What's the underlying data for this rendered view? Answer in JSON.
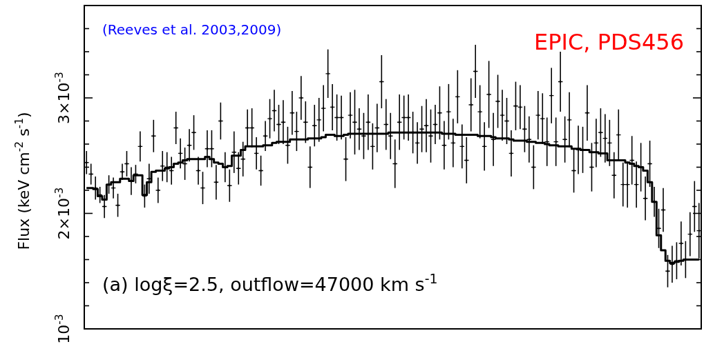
{
  "chart_data": {
    "type": "scatter",
    "ylabel": "Flux (keV cm$^{-2}$ s$^{-1}$)",
    "annotations": [
      "(Reeves et al. 2003,2009)",
      "EPIC, PDS456",
      "(a) logξ=2.5, outflow=47000 km s$^{-1}$"
    ],
    "categories": [
      null,
      null,
      null,
      null,
      null,
      null,
      null,
      null,
      null,
      null,
      null,
      null,
      null,
      null,
      null,
      null,
      null,
      null,
      null,
      null,
      null,
      null,
      null,
      null,
      null,
      null,
      null,
      null,
      null,
      null,
      null,
      null,
      null,
      null,
      null,
      null,
      null,
      null,
      null,
      null,
      null,
      null,
      null,
      null,
      null,
      null,
      null,
      null,
      null,
      null,
      null,
      null,
      null,
      null,
      null,
      null,
      null,
      null,
      null,
      null,
      null,
      null,
      null,
      null,
      null,
      null,
      null,
      null,
      null,
      null,
      null,
      null,
      null,
      null,
      null,
      null,
      null,
      null,
      null,
      null,
      null,
      null,
      null,
      null,
      null,
      null,
      null,
      null,
      null,
      null,
      null,
      null,
      null,
      null,
      null,
      null,
      null,
      null,
      null,
      null,
      null,
      null,
      null,
      null,
      null,
      null,
      null,
      null,
      null,
      null,
      null,
      null,
      null,
      null,
      null,
      null,
      null,
      null,
      null,
      null,
      null,
      null,
      null,
      null,
      null,
      null,
      null,
      null,
      null,
      null,
      null,
      null,
      null,
      null,
      null,
      null,
      null,
      null
    ],
    "ylim": [
      0.001,
      0.0038
    ],
    "yticks": [
      {
        "value": 0.001,
        "label": "10$^{-3}$"
      },
      {
        "value": 0.0012,
        "label": null
      },
      {
        "value": 0.0014,
        "label": null
      },
      {
        "value": 0.0016,
        "label": null
      },
      {
        "value": 0.0018,
        "label": null
      },
      {
        "value": 0.002,
        "label": "2×10$^{-3}$"
      },
      {
        "value": 0.0022,
        "label": null
      },
      {
        "value": 0.0024,
        "label": null
      },
      {
        "value": 0.0026,
        "label": null
      },
      {
        "value": 0.0028,
        "label": null
      },
      {
        "value": 0.003,
        "label": "3×10$^{-3}$"
      },
      {
        "value": 0.0032,
        "label": null
      },
      {
        "value": 0.0034,
        "label": null
      },
      {
        "value": 0.0036,
        "label": null
      }
    ],
    "marker": "none",
    "series": [
      {
        "color": "#000000",
        "marker": "cross",
        "values": [
          0.00244,
          0.00234,
          0.00222,
          0.00216,
          0.00206,
          0.00225,
          0.00222,
          0.00207,
          0.00236,
          0.00243,
          0.00228,
          0.00234,
          0.00258,
          0.00215,
          0.0023,
          0.00267,
          0.0022,
          0.00241,
          0.0024,
          0.00237,
          0.00274,
          0.00252,
          0.00243,
          0.00259,
          0.0027,
          0.00237,
          0.00222,
          0.00256,
          0.00256,
          0.00227,
          0.0028,
          0.0024,
          0.00224,
          0.00253,
          0.00239,
          0.00247,
          0.00274,
          0.00274,
          0.00252,
          0.00237,
          0.00267,
          0.00282,
          0.00289,
          0.00277,
          0.00279,
          0.00259,
          0.00287,
          0.00271,
          0.003,
          0.00279,
          0.0024,
          0.00276,
          0.00281,
          0.00291,
          0.00321,
          0.00292,
          0.00283,
          0.00283,
          0.00247,
          0.00285,
          0.00279,
          0.00273,
          0.00267,
          0.00279,
          0.00258,
          0.00274,
          0.00314,
          0.00277,
          0.00267,
          0.00243,
          0.00279,
          0.00283,
          0.00283,
          0.0027,
          0.00261,
          0.00273,
          0.00276,
          0.00267,
          0.00277,
          0.00287,
          0.00259,
          0.00288,
          0.00261,
          0.00301,
          0.00258,
          0.00246,
          0.00294,
          0.00323,
          0.00288,
          0.00258,
          0.00303,
          0.00264,
          0.00297,
          0.00285,
          0.0028,
          0.00252,
          0.00293,
          0.00292,
          0.00273,
          0.00264,
          0.0024,
          0.00285,
          0.00282,
          0.00262,
          0.00302,
          0.00262,
          0.00314,
          0.00264,
          0.00281,
          0.00237,
          0.00255,
          0.00255,
          0.00287,
          0.0024,
          0.00261,
          0.0027,
          0.00265,
          0.00261,
          0.00233,
          0.00268,
          0.00225,
          0.00225,
          0.00246,
          0.00225,
          0.0024,
          0.00213,
          0.00243,
          0.0021,
          0.00187,
          0.00203,
          0.0015,
          0.00156,
          0.00159,
          0.00174,
          0.0016,
          0.00182,
          0.00206,
          0.00185
        ],
        "errors": [
          0.0001,
          9e-05,
          0.0001,
          7e-05,
          0.0001,
          8e-05,
          9e-05,
          0.0001,
          7e-05,
          0.00011,
          0.00012,
          8e-05,
          0.00013,
          0.0001,
          0.00013,
          0.00014,
          0.00011,
          0.00013,
          0.00013,
          0.00012,
          0.00014,
          0.00013,
          0.00014,
          0.00014,
          0.00015,
          0.00012,
          0.00014,
          0.00016,
          0.00016,
          0.00015,
          0.00016,
          0.00013,
          0.00014,
          0.00018,
          0.00014,
          0.00015,
          0.00016,
          0.00017,
          0.00014,
          0.00013,
          0.00013,
          0.00017,
          0.00018,
          0.00017,
          0.00019,
          0.00016,
          0.00019,
          0.00017,
          0.00019,
          0.00018,
          0.00018,
          0.00018,
          0.00019,
          0.0002,
          0.00021,
          0.0002,
          0.0002,
          0.00019,
          0.00019,
          0.0002,
          0.00028,
          0.00018,
          0.0002,
          0.00024,
          0.0002,
          0.00021,
          0.00023,
          0.00022,
          0.0002,
          0.00021,
          0.00024,
          0.00019,
          0.0002,
          0.00018,
          0.00018,
          0.0002,
          0.00023,
          0.00023,
          0.00017,
          0.00023,
          0.00021,
          0.00024,
          0.00021,
          0.00023,
          0.00019,
          0.0002,
          0.00023,
          0.00023,
          0.00023,
          0.00021,
          0.00029,
          0.00023,
          0.00023,
          0.00022,
          0.0002,
          0.0002,
          0.00021,
          0.00019,
          0.0002,
          0.0002,
          0.00019,
          0.00021,
          0.00022,
          0.00021,
          0.00024,
          0.00021,
          0.00026,
          0.0002,
          0.00024,
          0.00019,
          0.00021,
          0.0002,
          0.00024,
          0.00021,
          0.00021,
          0.00021,
          0.00021,
          0.0002,
          0.0002,
          0.00022,
          0.00019,
          0.0002,
          0.00021,
          0.0002,
          0.00021,
          0.00019,
          0.0002,
          0.00013,
          0.00017,
          0.00019,
          0.00014,
          0.00016,
          0.00016,
          0.00019,
          0.00016,
          0.00019,
          0.00022,
          0.00024
        ]
      },
      {
        "type": "step",
        "color": "#000000",
        "values": [
          0.00222,
          0.00222,
          0.00221,
          0.00215,
          0.00212,
          0.00225,
          0.00227,
          0.00227,
          0.0023,
          0.0023,
          0.00228,
          0.00233,
          0.00233,
          0.00216,
          0.00227,
          0.00236,
          0.00237,
          0.00237,
          0.00239,
          0.0024,
          0.00243,
          0.00244,
          0.00246,
          0.00247,
          0.00247,
          0.00247,
          0.00247,
          0.00249,
          0.00247,
          0.00244,
          0.00243,
          0.0024,
          0.00241,
          0.0025,
          0.0025,
          0.00255,
          0.00258,
          0.00258,
          0.00258,
          0.00258,
          0.00259,
          0.00259,
          0.00261,
          0.00262,
          0.00262,
          0.00262,
          0.00264,
          0.00264,
          0.00264,
          0.00264,
          0.00265,
          0.00265,
          0.00265,
          0.00266,
          0.00268,
          0.00268,
          0.00267,
          0.00267,
          0.00268,
          0.00269,
          0.00269,
          0.00269,
          0.00269,
          0.00269,
          0.00269,
          0.00269,
          0.00269,
          0.00269,
          0.0027,
          0.0027,
          0.0027,
          0.0027,
          0.0027,
          0.0027,
          0.0027,
          0.0027,
          0.0027,
          0.0027,
          0.0027,
          0.0027,
          0.00269,
          0.00269,
          0.00269,
          0.00268,
          0.00268,
          0.00268,
          0.00268,
          0.00268,
          0.00267,
          0.00267,
          0.00267,
          0.00266,
          0.00265,
          0.00265,
          0.00265,
          0.00264,
          0.00263,
          0.00263,
          0.00263,
          0.00262,
          0.00262,
          0.00261,
          0.00261,
          0.0026,
          0.00259,
          0.00259,
          0.00258,
          0.00258,
          0.00258,
          0.00256,
          0.00256,
          0.00255,
          0.00255,
          0.00253,
          0.00253,
          0.00252,
          0.00252,
          0.00246,
          0.00246,
          0.00246,
          0.00246,
          0.00244,
          0.00243,
          0.00241,
          0.0024,
          0.00237,
          0.00227,
          0.0021,
          0.00181,
          0.00168,
          0.00159,
          0.00157,
          0.00158,
          0.00159,
          0.0016,
          0.0016,
          0.0016,
          0.0016
        ]
      }
    ]
  }
}
